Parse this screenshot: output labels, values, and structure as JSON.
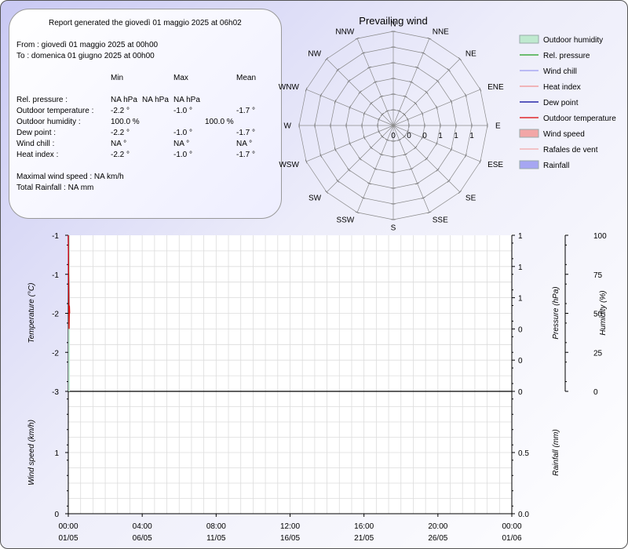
{
  "report": {
    "generated": "Report generated the giovedì 01 maggio 2025 at 06h02",
    "from": "From : giovedì 01 maggio 2025 at 00h00",
    "to": "To : domenica 01 giugno 2025 at 00h00",
    "headers": [
      "Min",
      "Max",
      "Mean"
    ],
    "rows": [
      {
        "label": "Rel. pressure :",
        "min": "NA hPa",
        "max": "NA hPa",
        "mean": "NA hPa"
      },
      {
        "label": "Outdoor temperature :",
        "min": "-2.2 °",
        "max": "-1.0 °",
        "mean": "-1.7 °"
      },
      {
        "label": "Outdoor humidity :",
        "min": "100.0 %",
        "max": "",
        "mean": "100.0 %"
      },
      {
        "label": "Dew point :",
        "min": "-2.2 °",
        "max": "-1.0 °",
        "mean": "-1.7 °"
      },
      {
        "label": "Wind chill :",
        "min": "NA °",
        "max": "NA °",
        "mean": "NA °"
      },
      {
        "label": "Heat index :",
        "min": "-2.2 °",
        "max": "-1.0 °",
        "mean": "-1.7 °"
      }
    ],
    "max_wind": "Maximal wind speed : NA km/h",
    "total_rain": "Total Rainfall : NA mm"
  },
  "legend": [
    {
      "label": "Outdoor humidity",
      "color": "#bfe9cf",
      "kind": "box"
    },
    {
      "label": "Rel. pressure",
      "color": "#1e9e1e",
      "kind": "line"
    },
    {
      "label": "Wind chill",
      "color": "#9a9af0",
      "kind": "line"
    },
    {
      "label": "Heat index",
      "color": "#f09090",
      "kind": "line"
    },
    {
      "label": "Dew point",
      "color": "#000099",
      "kind": "line"
    },
    {
      "label": "Outdoor temperature",
      "color": "#dd0000",
      "kind": "line"
    },
    {
      "label": "Wind speed",
      "color": "#f2a6a6",
      "kind": "box"
    },
    {
      "label": "Rafales de vent",
      "color": "#f2a6a6",
      "kind": "line"
    },
    {
      "label": "Rainfall",
      "color": "#a6a6f2",
      "kind": "box"
    }
  ],
  "chart_data": [
    {
      "type": "radar",
      "title": "Prevailing wind",
      "directions": [
        "N",
        "NNE",
        "NE",
        "ENE",
        "E",
        "ESE",
        "SE",
        "SSE",
        "S",
        "SSW",
        "SW",
        "WSW",
        "W",
        "WNW",
        "NW",
        "NNW"
      ],
      "radial_tick_labels": [
        "0",
        "0",
        "0",
        "1",
        "1",
        "1"
      ]
    },
    {
      "type": "line",
      "x_tick_labels": [
        {
          "time": "00:00",
          "date": "01/05"
        },
        {
          "time": "04:00",
          "date": "06/05"
        },
        {
          "time": "08:00",
          "date": "11/05"
        },
        {
          "time": "12:00",
          "date": "16/05"
        },
        {
          "time": "16:00",
          "date": "21/05"
        },
        {
          "time": "20:00",
          "date": "26/05"
        },
        {
          "time": "00:00",
          "date": "01/06"
        }
      ],
      "top_panel": {
        "ylabel_left": "Temperature (°C)",
        "ylabel_right1": "Pressure (hPa)",
        "ylabel_right2": "Humidity (%)",
        "left_ticks": [
          "-3",
          "-2",
          "-2",
          "-1",
          "-1"
        ],
        "right1_ticks": [
          "0",
          "0",
          "0",
          "1",
          "1",
          "1"
        ],
        "right2_ticks": [
          "0",
          "25",
          "50",
          "75",
          "100"
        ],
        "series": [
          {
            "name": "Outdoor temperature",
            "color": "#dd0000",
            "x": [
              0,
              0.0006,
              0.0012,
              0.0018,
              0.0024,
              0.003
            ],
            "y": [
              -1.0,
              -1.4,
              -1.9,
              -2.2,
              -1.9,
              -2.0
            ]
          },
          {
            "name": "Dew point",
            "color": "#000099",
            "x": [
              0,
              0.0006,
              0.0012
            ],
            "y": [
              -1.0,
              -1.4,
              -1.9
            ]
          },
          {
            "name": "Outdoor humidity",
            "color": "#bfe9cf",
            "x": [
              0,
              0.003
            ],
            "y": [
              100,
              100
            ]
          }
        ]
      },
      "bottom_panel": {
        "ylabel_left": "Wind speed (km/h)",
        "ylabel_right": "Rainfall (mm)",
        "left_ticks": [
          "0",
          "1"
        ],
        "right_ticks": [
          "0.0",
          "0.5"
        ]
      }
    }
  ]
}
